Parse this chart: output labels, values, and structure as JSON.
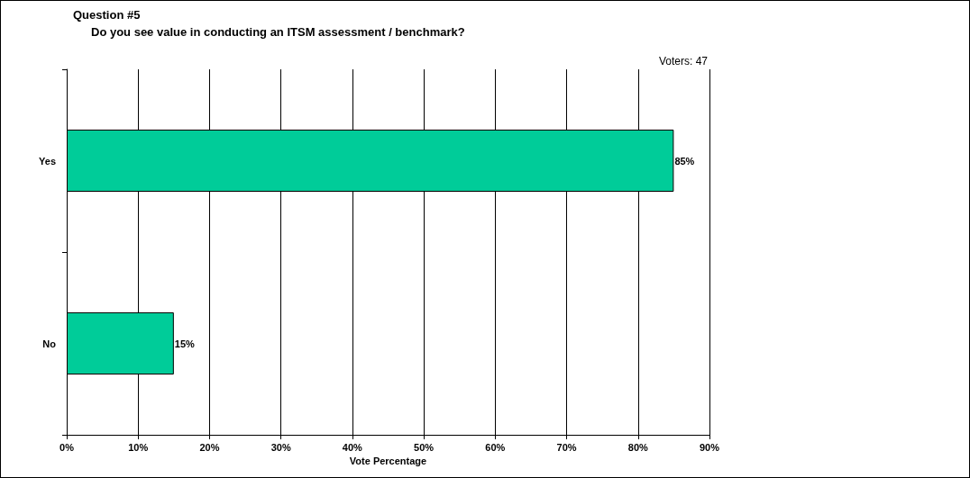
{
  "chart_data": {
    "type": "bar",
    "orientation": "horizontal",
    "title": "Question #5",
    "subtitle": "Do you see value in conducting an ITSM assessment / benchmark?",
    "annotations": [
      "Voters: 47"
    ],
    "xlabel": "Vote Percentage",
    "categories": [
      "Yes",
      "No"
    ],
    "values": [
      85,
      15
    ],
    "color": "#00cc99",
    "value_labels": [
      "85%",
      "15%"
    ],
    "xlim": [
      0,
      90
    ],
    "xticks": [
      {
        "value": 0,
        "label": "0%"
      },
      {
        "value": 10,
        "label": "10%"
      },
      {
        "value": 20,
        "label": "20%"
      },
      {
        "value": 30,
        "label": "30%"
      },
      {
        "value": 40,
        "label": "40%"
      },
      {
        "value": 50,
        "label": "50%"
      },
      {
        "value": 60,
        "label": "60%"
      },
      {
        "value": 70,
        "label": "70%"
      },
      {
        "value": 80,
        "label": "80%"
      },
      {
        "value": 90,
        "label": "90%"
      }
    ],
    "grid": "x"
  }
}
